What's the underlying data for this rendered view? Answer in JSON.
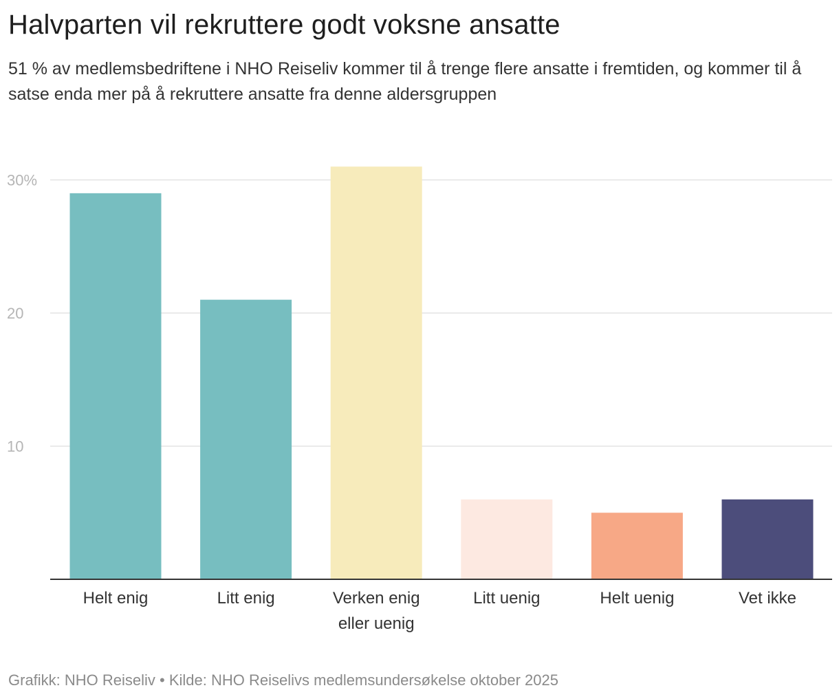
{
  "header": {
    "title": "Halvparten vil rekruttere godt voksne ansatte",
    "subtitle": "51 % av medlemsbedriftene i NHO Reiseliv kommer til å trenge flere ansatte i fremtiden, og kommer til å satse enda mer på å rekruttere ansatte fra denne aldersgruppen"
  },
  "footer": {
    "credit": "Grafikk: NHO Reiseliv • Kilde: NHO Reiselivs medlemsundersøkelse oktober 2025"
  },
  "chart_data": {
    "type": "bar",
    "title": "Halvparten vil rekruttere godt voksne ansatte",
    "subtitle": "51 % av medlemsbedriftene i NHO Reiseliv kommer til å trenge flere ansatte i fremtiden, og kommer til å satse enda mer på å rekruttere ansatte fra denne aldersgruppen",
    "categories": [
      [
        "Helt enig"
      ],
      [
        "Litt enig"
      ],
      [
        "Verken enig",
        "eller uenig"
      ],
      [
        "Litt uenig"
      ],
      [
        "Helt uenig"
      ],
      [
        "Vet ikke"
      ]
    ],
    "values": [
      29,
      21,
      31,
      6,
      5,
      6
    ],
    "colors": [
      "#77bec0",
      "#77bec0",
      "#f7ebbb",
      "#fde9e1",
      "#f7a886",
      "#4c4d7b"
    ],
    "ylim": [
      0,
      30
    ],
    "yticks": [
      {
        "value": 10,
        "label": "10"
      },
      {
        "value": 20,
        "label": "20"
      },
      {
        "value": 30,
        "label": "30%"
      }
    ],
    "xlabel": "",
    "ylabel": "",
    "grid": true,
    "legend": "none"
  }
}
